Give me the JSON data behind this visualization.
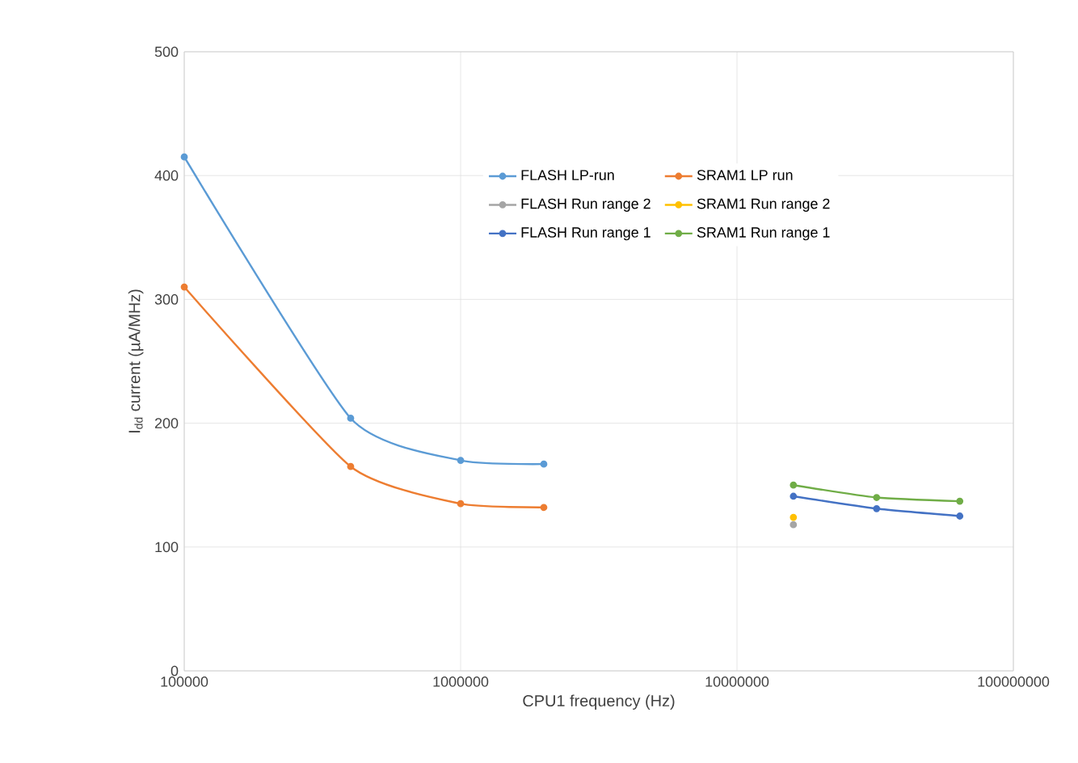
{
  "chart_data": {
    "type": "line",
    "xlabel": "CPU1 frequency (Hz)",
    "ylabel": "I$_{dd}$ current (µA/MHz)",
    "log": "x",
    "grid": true,
    "legend": "top right",
    "marker": "circle",
    "xlim": [
      100000,
      100000000
    ],
    "xticks": [
      100000,
      1000000,
      10000000,
      100000000
    ],
    "ylim": [
      0,
      500
    ],
    "yticks": [
      0,
      100,
      200,
      300,
      400,
      500
    ],
    "series": [
      {
        "name": "FLASH LP-run",
        "color": "#5b9bd5",
        "x": [
          100000,
          400000,
          1000000,
          2000000
        ],
        "values": [
          415,
          204,
          170,
          167
        ]
      },
      {
        "name": "SRAM1 LP run",
        "color": "#ed7d31",
        "x": [
          100000,
          400000,
          1000000,
          2000000
        ],
        "values": [
          310,
          165,
          135,
          132
        ]
      },
      {
        "name": "FLASH Run range 2",
        "color": "#a5a5a5",
        "x": [
          16000000
        ],
        "values": [
          118
        ]
      },
      {
        "name": "SRAM1 Run range 2",
        "color": "#ffc000",
        "x": [
          16000000
        ],
        "values": [
          124
        ]
      },
      {
        "name": "FLASH Run range 1",
        "color": "#4472c4",
        "x": [
          16000000,
          32000000,
          64000000
        ],
        "values": [
          141,
          131,
          125
        ]
      },
      {
        "name": "SRAM1 Run range 1",
        "color": "#70ad47",
        "x": [
          16000000,
          32000000,
          64000000
        ],
        "values": [
          150,
          140,
          137
        ]
      }
    ]
  }
}
